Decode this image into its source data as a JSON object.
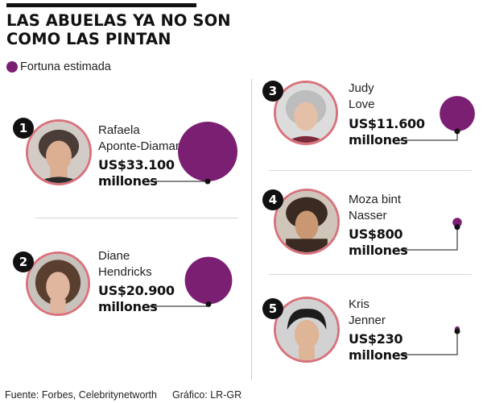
{
  "title_line1": "LAS ABUELAS YA NO SON",
  "title_line2": "COMO LAS PINTAN",
  "legend": {
    "label": "Fortuna estimada",
    "color": "#7b1f73"
  },
  "chart_data": {
    "type": "bubble",
    "unit": "US$ millones",
    "items": [
      {
        "rank": "1",
        "name_line1": "Rafaela",
        "name_line2": "Aponte-Diamant",
        "amount_line1": "US$33.100",
        "amount_line2": "millones",
        "value": 33100
      },
      {
        "rank": "2",
        "name_line1": "Diane",
        "name_line2": "Hendricks",
        "amount_line1": "US$20.900",
        "amount_line2": "millones",
        "value": 20900
      },
      {
        "rank": "3",
        "name_line1": "Judy",
        "name_line2": "Love",
        "amount_line1": "US$11.600",
        "amount_line2": "millones",
        "value": 11600
      },
      {
        "rank": "4",
        "name_line1": "Moza bint",
        "name_line2": "Nasser",
        "amount_line1": "US$800",
        "amount_line2": "millones",
        "value": 800
      },
      {
        "rank": "5",
        "name_line1": "Kris",
        "name_line2": "Jenner",
        "amount_line1": "US$230",
        "amount_line2": "millones",
        "value": 230
      }
    ]
  },
  "footer": {
    "source": "Fuente: Forbes, Celebritynetworth",
    "credit": "Gráfico: LR-GR"
  },
  "colors": {
    "bubble": "#7b1f73",
    "avatar_border": "#d8727c",
    "leader": "#111111"
  }
}
